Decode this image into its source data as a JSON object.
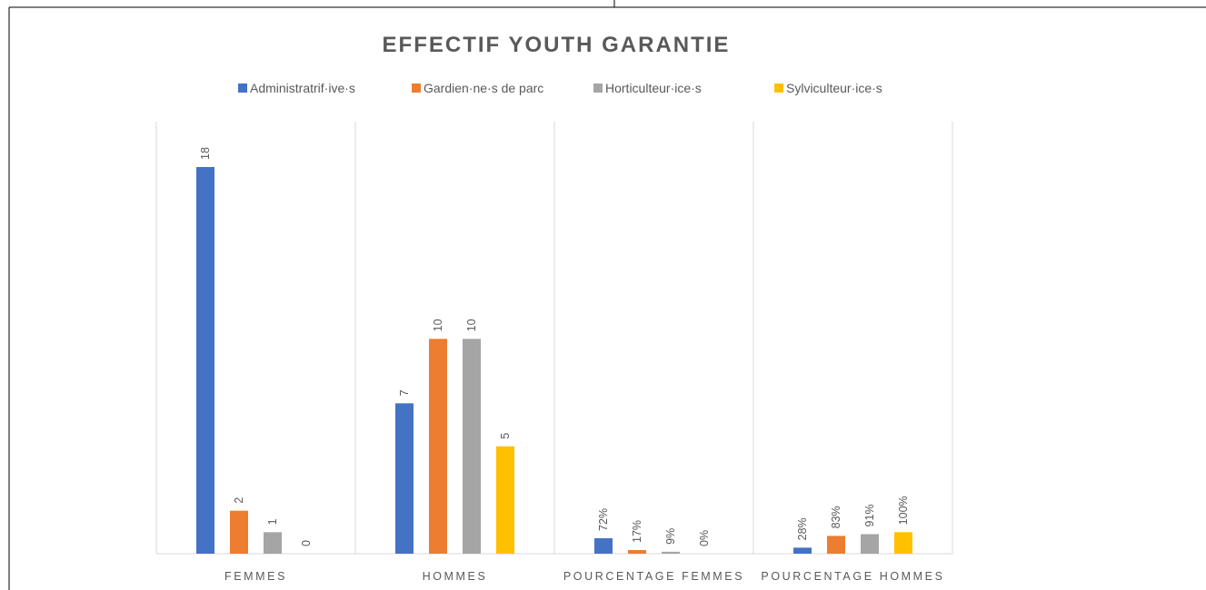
{
  "chart_data": {
    "type": "bar",
    "title": "EFFECTIF YOUTH GARANTIE",
    "categories": [
      "FEMMES",
      "HOMMES",
      "POURCENTAGE FEMMES",
      "POURCENTAGE HOMMES"
    ],
    "legend_position": "top",
    "grid": false,
    "ylim": [
      0,
      20
    ],
    "series": [
      {
        "name": "Administratrif·ive·s",
        "color": "#4472C4",
        "values": [
          18,
          7,
          0.72,
          0.28
        ],
        "labels": [
          "18",
          "7",
          "72%",
          "28%"
        ]
      },
      {
        "name": "Gardien·ne·s de parc",
        "color": "#ED7D31",
        "values": [
          2,
          10,
          0.17,
          0.83
        ],
        "labels": [
          "2",
          "10",
          "17%",
          "83%"
        ]
      },
      {
        "name": "Horticulteur·ice·s",
        "color": "#A5A5A5",
        "values": [
          1,
          10,
          0.09,
          0.91
        ],
        "labels": [
          "1",
          "10",
          "9%",
          "91%"
        ]
      },
      {
        "name": "Sylviculteur·ice·s",
        "color": "#FFC000",
        "values": [
          0,
          5,
          0,
          1
        ],
        "labels": [
          "0",
          "5",
          "0%",
          "100%"
        ]
      }
    ]
  }
}
